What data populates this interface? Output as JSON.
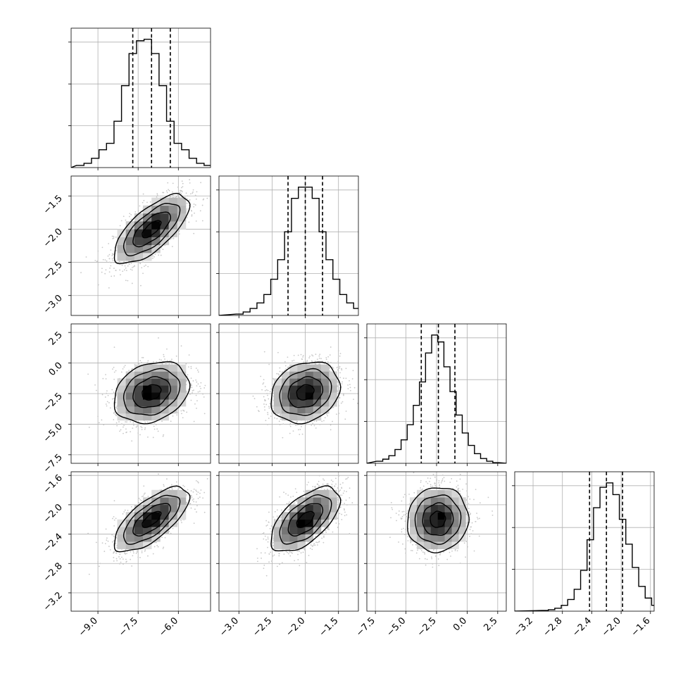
{
  "chart_data": {
    "type": "corner",
    "n_params": 4,
    "grid": true,
    "params": [
      {
        "lim": [
          -10.0,
          -4.8
        ],
        "ticks": [
          -9.0,
          -7.5,
          -6.0
        ],
        "tick_labels": [
          "−9.0",
          "−7.5",
          "−6.0"
        ],
        "mean": -7.0,
        "sd": 0.7,
        "quantiles": [
          -7.7,
          -7.0,
          -6.3
        ]
      },
      {
        "lim": [
          -3.3,
          -1.2
        ],
        "ticks": [
          -3.0,
          -2.5,
          -2.0,
          -1.5
        ],
        "tick_labels": [
          "−3.0",
          "−2.5",
          "−2.0",
          "−1.5"
        ],
        "mean": -2.0,
        "sd": 0.26,
        "quantiles": [
          -2.26,
          -2.0,
          -1.74
        ]
      },
      {
        "lim": [
          -8.2,
          3.2
        ],
        "ticks": [
          -7.5,
          -5.0,
          -2.5,
          0.0,
          2.5
        ],
        "tick_labels": [
          "−7.5",
          "−5.0",
          "−2.5",
          "0.0",
          "2.5"
        ],
        "mean": -2.4,
        "sd": 1.25,
        "quantiles": [
          -3.75,
          -2.35,
          -1.0
        ]
      },
      {
        "lim": [
          -3.45,
          -1.55
        ],
        "ticks": [
          -3.2,
          -2.8,
          -2.4,
          -2.0,
          -1.6
        ],
        "tick_labels": [
          "−3.2",
          "−2.8",
          "−2.4",
          "−2.0",
          "−1.6"
        ],
        "mean": -2.2,
        "sd": 0.22,
        "quantiles": [
          -2.43,
          -2.2,
          -1.98
        ]
      }
    ],
    "histograms": [
      {
        "param": 0,
        "bins": 20,
        "counts": [
          3,
          6,
          13,
          25,
          34,
          65,
          115,
          160,
          178,
          180,
          160,
          115,
          65,
          34,
          25,
          13,
          6,
          3,
          1,
          0
        ]
      },
      {
        "param": 1,
        "bins": 20,
        "counts": [
          2,
          5,
          10,
          18,
          30,
          52,
          80,
          120,
          168,
          184,
          184,
          168,
          120,
          80,
          52,
          30,
          18,
          10,
          5,
          2
        ]
      },
      {
        "param": 2,
        "bins": 20,
        "counts": [
          3,
          6,
          11,
          20,
          34,
          56,
          84,
          118,
          160,
          186,
          176,
          140,
          104,
          70,
          44,
          26,
          14,
          7,
          3,
          1
        ]
      },
      {
        "param": 3,
        "bins": 20,
        "counts": [
          1,
          2,
          4,
          8,
          16,
          30,
          56,
          98,
          142,
          170,
          176,
          160,
          126,
          92,
          60,
          34,
          18,
          8,
          3,
          1
        ]
      }
    ],
    "pairs": [
      {
        "x": 0,
        "y": 1,
        "corr": 0.7
      },
      {
        "x": 0,
        "y": 2,
        "corr": 0.25
      },
      {
        "x": 1,
        "y": 2,
        "corr": 0.2
      },
      {
        "x": 0,
        "y": 3,
        "corr": 0.7
      },
      {
        "x": 1,
        "y": 3,
        "corr": 0.6
      },
      {
        "x": 2,
        "y": 3,
        "corr": 0.05
      }
    ],
    "contour_levels_sigma": [
      0.5,
      1.0,
      1.5,
      2.0
    ],
    "colors": {
      "line": "#000000",
      "scatter": "#c8c8c8",
      "grid": "#b0b0b0",
      "density_max": "#000000",
      "density_min": "#ffffff"
    }
  }
}
